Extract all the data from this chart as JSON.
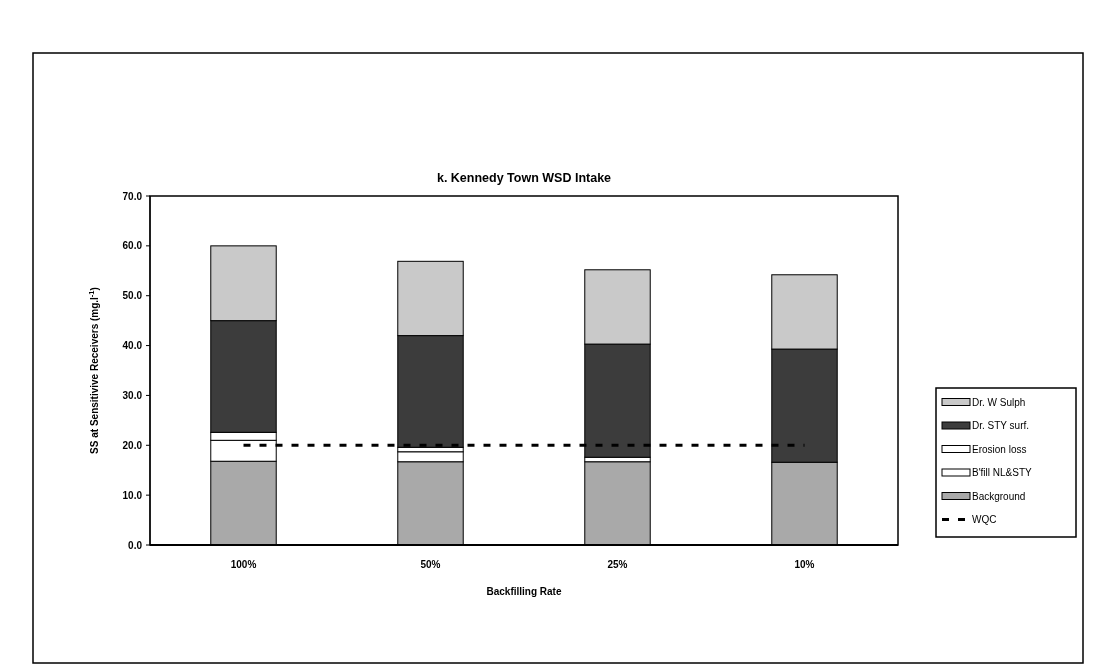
{
  "chart_data": {
    "type": "bar",
    "title": "k.  Kennedy Town WSD Intake",
    "xlabel": "Backfilling Rate",
    "ylabel": "SS at Sensitivive Receivers (mg.l$^{-1}$)",
    "categories": [
      "100%",
      "50%",
      "25%",
      "10%"
    ],
    "stacked": true,
    "legend": "right",
    "series": [
      {
        "name": "Background",
        "color": "#a9a9a9",
        "values": [
          16.8,
          16.7,
          16.7,
          16.6
        ]
      },
      {
        "name": "B'fill NL&STY",
        "color": "#ffffff",
        "values": [
          4.2,
          2.0,
          0.9,
          0
        ]
      },
      {
        "name": "Erosion loss",
        "color": "#ffffff",
        "values": [
          1.6,
          0.9,
          null,
          0
        ]
      },
      {
        "name": "Dr. STY surf.",
        "color": "#3c3c3c",
        "values": [
          22.4,
          22.4,
          22.7,
          22.7
        ]
      },
      {
        "name": "Dr. W Sulph",
        "color": "#c9c9c9",
        "values": [
          15,
          14.9,
          14.9,
          14.9
        ]
      },
      {
        "name": "WQC",
        "type": "line",
        "color": "#000000",
        "line_style": "dashed",
        "marker": "none",
        "values": [
          20,
          20,
          20,
          20
        ]
      }
    ],
    "ylim": [
      0,
      70
    ],
    "yticks": [
      {
        "value": 0,
        "label": "0.0"
      },
      {
        "value": 10,
        "label": "10.0"
      },
      {
        "value": 20,
        "label": "20.0"
      },
      {
        "value": 30,
        "label": "30.0"
      },
      {
        "value": 40,
        "label": "40.0"
      },
      {
        "value": 50,
        "label": "50.0"
      },
      {
        "value": 60,
        "label": "60.0"
      },
      {
        "value": 70,
        "label": "70.0"
      }
    ],
    "grid": false
  }
}
